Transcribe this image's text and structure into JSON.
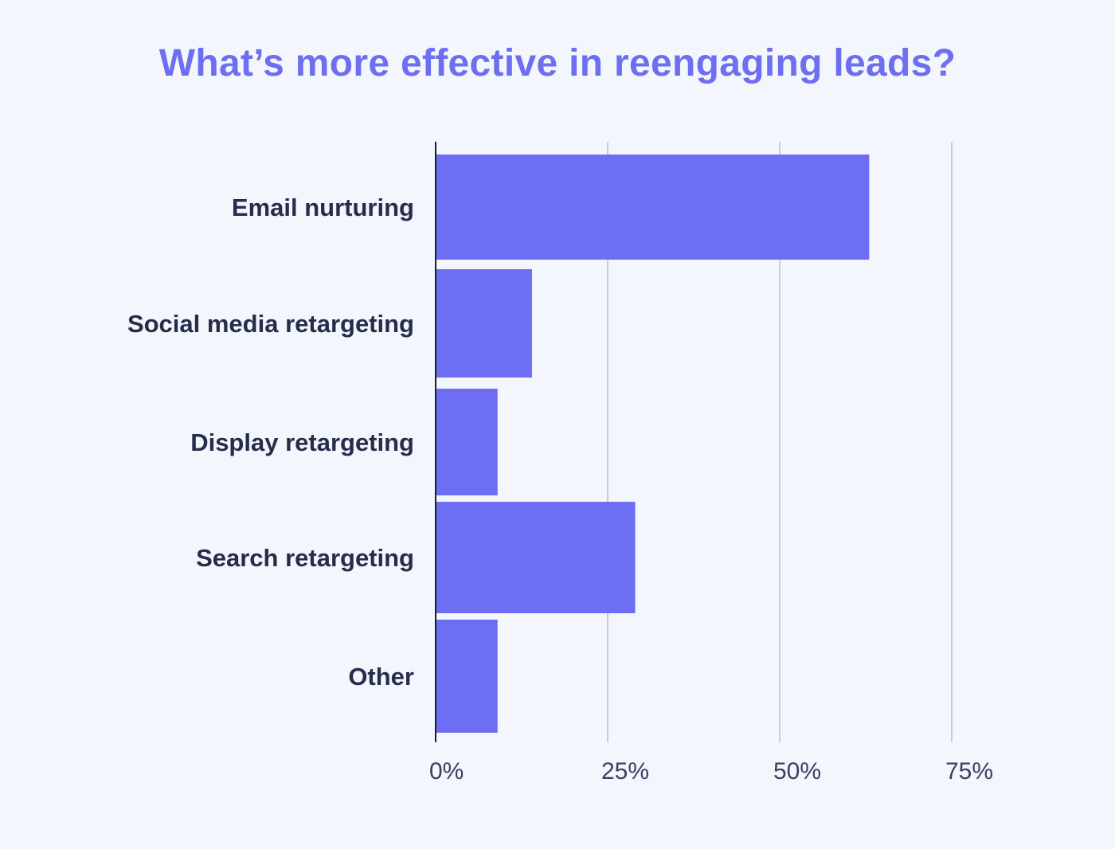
{
  "chart_data": {
    "type": "bar",
    "orientation": "horizontal",
    "title": "What’s more effective in reengaging leads?",
    "xlabel": "",
    "ylabel": "",
    "categories": [
      "Email nurturing",
      "Social media retargeting",
      "Display retargeting",
      "Search retargeting",
      "Other"
    ],
    "values": [
      63,
      14,
      9,
      29,
      9
    ],
    "unit": "%",
    "xlim": [
      0,
      75
    ],
    "xticks": [
      0,
      25,
      50,
      75
    ],
    "tick_labels": [
      "0%",
      "25%",
      "50%",
      "75%"
    ],
    "grid": "vertical",
    "legend": "none",
    "bar_color": "#6e6ef5",
    "grid_color": "#c9cdd8",
    "axis_color": "#1b1f33"
  }
}
